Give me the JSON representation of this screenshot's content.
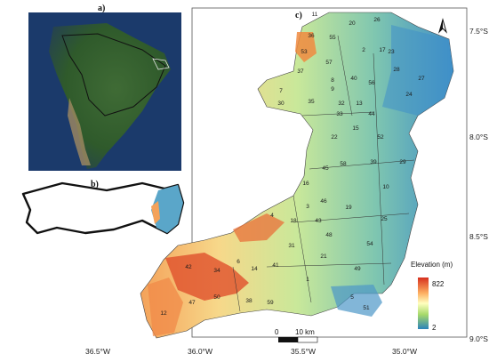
{
  "panels": {
    "a": "a)",
    "b": "b)",
    "c": "c)"
  },
  "axes": {
    "lon_ticks": [
      "36.5°W",
      "36.0°W",
      "35.5°W",
      "35.0°W"
    ],
    "lat_ticks": [
      "7.5°S",
      "8.0°S",
      "8.5°S",
      "9.0°S"
    ]
  },
  "legend": {
    "title": "Elevation (m)",
    "max": "822",
    "min": "2",
    "colors": [
      "#d7301f",
      "#fdae61",
      "#ffffbf",
      "#a6d96a",
      "#2b83ba"
    ]
  },
  "scalebar": {
    "zero": "0",
    "length": "10 km"
  },
  "north_arrow": "north-arrow-icon",
  "municipalities": [
    "1",
    "2",
    "3",
    "4",
    "5",
    "6",
    "7",
    "8",
    "9",
    "10",
    "11",
    "12",
    "13",
    "14",
    "15",
    "16",
    "17",
    "18",
    "19",
    "20",
    "21",
    "22",
    "23",
    "24",
    "25",
    "26",
    "27",
    "28",
    "29",
    "30",
    "31",
    "32",
    "33",
    "34",
    "35",
    "36",
    "37",
    "38",
    "39",
    "40",
    "41",
    "42",
    "43",
    "44",
    "45",
    "46",
    "47",
    "48",
    "49",
    "50",
    "51",
    "52",
    "53",
    "54",
    "55",
    "56",
    "57",
    "58",
    "59"
  ]
}
